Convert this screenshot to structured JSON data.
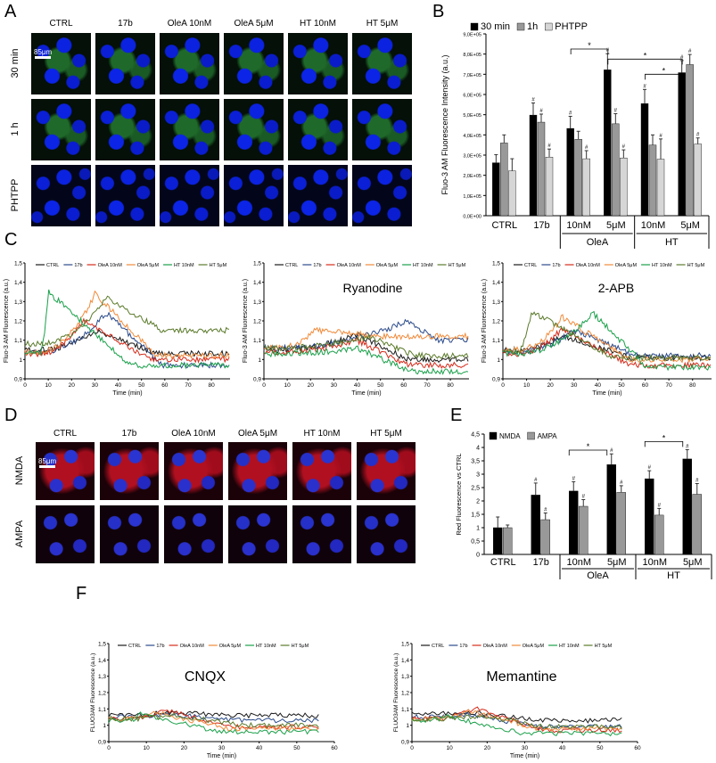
{
  "panels": {
    "A": {
      "label": "A",
      "columns": [
        "CTRL",
        "17b",
        "OleA 10nM",
        "OleA 5μM",
        "HT 10nM",
        "HT 5μM"
      ],
      "rows": [
        "30 min",
        "1 h",
        "PHTPP"
      ],
      "scale": "85μm",
      "tile_style": [
        "green",
        "green",
        "blue"
      ]
    },
    "B": {
      "label": "B"
    },
    "C": {
      "label": "C"
    },
    "D": {
      "label": "D",
      "columns": [
        "CTRL",
        "17b",
        "OleA 10nM",
        "OleA 5μM",
        "HT 10nM",
        "HT 5μM"
      ],
      "rows": [
        "NMDA",
        "AMPA"
      ],
      "scale": "85μm"
    },
    "E": {
      "label": "E"
    },
    "F": {
      "label": "F"
    }
  },
  "legend_lines": {
    "entries": [
      "CTRL",
      "17b",
      "OleA 10nM",
      "OleA 5μM",
      "HT 10nM",
      "HT 5μM"
    ],
    "colors": [
      "#1a1a1a",
      "#2a4a8a",
      "#d42a1a",
      "#f08a3a",
      "#1aa04a",
      "#5a7a2a"
    ]
  },
  "chart_data": [
    {
      "id": "B",
      "type": "bar",
      "ylabel": "Fluo-3 AM Fluorescence Intensity (a.u.)",
      "yticks": [
        "0,0E+00",
        "1,0E+05",
        "2,0E+05",
        "3,0E+05",
        "4,0E+05",
        "5,0E+05",
        "6,0E+05",
        "7,0E+05",
        "8,0E+05",
        "9,0E+05"
      ],
      "ylim": [
        0,
        900000
      ],
      "categories": [
        "CTRL",
        "17b",
        "10nM",
        "5μM",
        "10nM",
        "5μM"
      ],
      "groups": [
        {
          "label": "OleA",
          "span": [
            2,
            3
          ]
        },
        {
          "label": "HT",
          "span": [
            4,
            5
          ]
        }
      ],
      "series": [
        {
          "name": "30 min",
          "color": "#000000",
          "values": [
            262000,
            498000,
            432000,
            722000,
            555000,
            708000
          ],
          "errors": [
            40000,
            60000,
            60000,
            80000,
            70000,
            60000
          ]
        },
        {
          "name": "1h",
          "color": "#999999",
          "values": [
            360000,
            463000,
            378000,
            455000,
            350000,
            748000
          ],
          "errors": [
            40000,
            40000,
            40000,
            50000,
            50000,
            50000
          ]
        },
        {
          "name": "PHTPP",
          "color": "#d6d6d6",
          "values": [
            222000,
            290000,
            282000,
            286000,
            280000,
            355000
          ],
          "errors": [
            60000,
            40000,
            40000,
            40000,
            100000,
            30000
          ]
        }
      ],
      "hash_marks": "#",
      "significance": "*"
    },
    {
      "id": "C1",
      "type": "line",
      "title": "",
      "ylabel": "Fluo-3 AM Fluorescence (a.u.)",
      "xlabel": "Time (min)",
      "xticks": [
        "0",
        "10",
        "20",
        "30",
        "40",
        "50",
        "60",
        "70",
        "80"
      ],
      "yticks": [
        "0,9",
        "1",
        "1,1",
        "1,2",
        "1,3",
        "1,4",
        "1,5"
      ],
      "xlim": [
        0,
        88
      ],
      "ylim": [
        0.9,
        1.5
      ],
      "peaks": [
        [
          30,
          1.15
        ],
        [
          35,
          1.24
        ],
        [
          25,
          1.2
        ],
        [
          30,
          1.34
        ],
        [
          10,
          1.35
        ],
        [
          35,
          1.32
        ]
      ],
      "base": [
        1.05,
        1.04,
        1.03,
        1.04,
        1.03,
        1.08
      ],
      "tail": [
        1.03,
        0.97,
        1.0,
        1.02,
        0.97,
        1.15
      ]
    },
    {
      "id": "C2",
      "type": "line",
      "title": "Ryanodine",
      "ylabel": "Fluo-3 AM Fluorescence (a.u.)",
      "xlabel": "Time (min)",
      "xticks": [
        "0",
        "10",
        "20",
        "30",
        "40",
        "50",
        "60",
        "70",
        "80"
      ],
      "yticks": [
        "0,9",
        "1",
        "1,1",
        "1,2",
        "1,3",
        "1,4",
        "1,5"
      ],
      "xlim": [
        0,
        88
      ],
      "ylim": [
        0.9,
        1.5
      ],
      "peaks": [
        [
          40,
          1.13
        ],
        [
          62,
          1.2
        ],
        [
          40,
          1.1
        ],
        [
          22,
          1.15
        ],
        [
          40,
          1.06
        ],
        [
          45,
          1.12
        ]
      ],
      "base": [
        1.05,
        1.06,
        1.04,
        1.06,
        1.03,
        1.06
      ],
      "tail": [
        1.0,
        1.1,
        0.97,
        1.12,
        0.94,
        1.02
      ]
    },
    {
      "id": "C3",
      "type": "line",
      "title": "2-APB",
      "ylabel": "Fluo-3 AM Fluorescence (a.u.)",
      "xlabel": "Time (min)",
      "xticks": [
        "0",
        "10",
        "20",
        "30",
        "40",
        "50",
        "60",
        "70",
        "80"
      ],
      "yticks": [
        "0,9",
        "1",
        "1,1",
        "1,2",
        "1,3",
        "1,4",
        "1,5"
      ],
      "xlim": [
        0,
        88
      ],
      "ylim": [
        0.9,
        1.5
      ],
      "peaks": [
        [
          25,
          1.12
        ],
        [
          30,
          1.15
        ],
        [
          25,
          1.16
        ],
        [
          25,
          1.22
        ],
        [
          38,
          1.24
        ],
        [
          12,
          1.25
        ]
      ],
      "base": [
        1.05,
        1.04,
        1.03,
        1.05,
        1.03,
        1.04
      ],
      "tail": [
        1.01,
        1.02,
        0.97,
        1.0,
        0.96,
        1.01
      ]
    },
    {
      "id": "E",
      "type": "bar",
      "ylabel": "Red Fluorescence vs CTRL",
      "yticks": [
        "0",
        "0,5",
        "1",
        "1,5",
        "2",
        "2,5",
        "3",
        "3,5",
        "4",
        "4,5"
      ],
      "ylim": [
        0,
        4.5
      ],
      "categories": [
        "CTRL",
        "17b",
        "10nM",
        "5μM",
        "10nM",
        "5μM"
      ],
      "groups": [
        {
          "label": "OleA",
          "span": [
            2,
            3
          ]
        },
        {
          "label": "HT",
          "span": [
            4,
            5
          ]
        }
      ],
      "series": [
        {
          "name": "NMDA",
          "color": "#000000",
          "values": [
            1.0,
            2.22,
            2.37,
            3.36,
            2.83,
            3.57
          ],
          "errors": [
            0.4,
            0.45,
            0.35,
            0.4,
            0.3,
            0.35
          ]
        },
        {
          "name": "AMPA",
          "color": "#999999",
          "values": [
            1.0,
            1.3,
            1.8,
            2.32,
            1.47,
            2.25
          ],
          "errors": [
            0.1,
            0.25,
            0.25,
            0.25,
            0.25,
            0.4
          ]
        }
      ],
      "hash_marks": "#",
      "significance": "*"
    },
    {
      "id": "F1",
      "type": "line",
      "title": "CNQX",
      "ylabel": "FLUO3AM Fluorescence (a.u.)",
      "xlabel": "Time (min)",
      "xticks": [
        "0",
        "10",
        "20",
        "30",
        "40",
        "50",
        "60"
      ],
      "yticks": [
        "0,9",
        "1",
        "1,1",
        "1,2",
        "1,3",
        "1,4",
        "1,5"
      ],
      "xlim": [
        0,
        60
      ],
      "ylim": [
        0.9,
        1.5
      ],
      "peaks": [
        [
          15,
          1.08
        ],
        [
          15,
          1.07
        ],
        [
          15,
          1.09
        ],
        [
          12,
          1.08
        ],
        [
          8,
          1.07
        ],
        [
          18,
          1.06
        ]
      ],
      "base": [
        1.06,
        1.05,
        1.04,
        1.04,
        1.03,
        1.04
      ],
      "tail": [
        1.06,
        1.03,
        0.99,
        0.98,
        0.96,
        1.0
      ]
    },
    {
      "id": "F2",
      "type": "line",
      "title": "Memantine",
      "ylabel": "FLUO3AM Fluorescence (a.u.)",
      "xlabel": "Time (min)",
      "xticks": [
        "0",
        "10",
        "20",
        "30",
        "40",
        "50",
        "60"
      ],
      "yticks": [
        "0,9",
        "1",
        "1,1",
        "1,2",
        "1,3",
        "1,4",
        "1,5"
      ],
      "xlim": [
        0,
        60
      ],
      "ylim": [
        0.9,
        1.5
      ],
      "peaks": [
        [
          15,
          1.08
        ],
        [
          15,
          1.07
        ],
        [
          17,
          1.11
        ],
        [
          15,
          1.09
        ],
        [
          8,
          1.06
        ],
        [
          18,
          1.06
        ]
      ],
      "base": [
        1.07,
        1.05,
        1.04,
        1.04,
        1.03,
        1.04
      ],
      "tail": [
        1.03,
        0.99,
        0.97,
        0.98,
        0.95,
        0.99
      ]
    }
  ]
}
